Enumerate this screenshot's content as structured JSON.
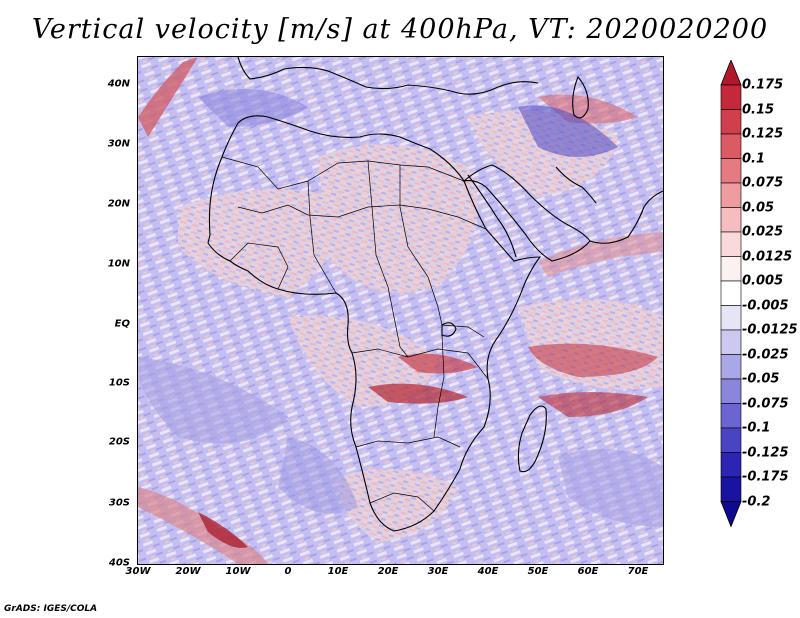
{
  "title": "Vertical velocity [m/s] at 400hPa, VT: 2020020200",
  "footer": "GrADS: IGES/COLA",
  "map": {
    "lat_labels": [
      "40N",
      "30N",
      "20N",
      "10N",
      "EQ",
      "10S",
      "20S",
      "30S",
      "40S"
    ],
    "lon_labels": [
      "30W",
      "20W",
      "10W",
      "0",
      "10E",
      "20E",
      "30E",
      "40E",
      "50E",
      "60E",
      "70E"
    ],
    "lat_range": [
      -40,
      45
    ],
    "lon_range": [
      -30,
      75
    ]
  },
  "colorbar": {
    "levels": [
      "0.175",
      "0.15",
      "0.125",
      "0.1",
      "0.075",
      "0.05",
      "0.025",
      "0.0125",
      "0.005",
      "-0.005",
      "-0.0125",
      "-0.025",
      "-0.05",
      "-0.075",
      "-0.1",
      "-0.125",
      "-0.175",
      "-0.2"
    ],
    "colors": [
      "#b2182b",
      "#c5283a",
      "#d13f4c",
      "#dc5a63",
      "#e57a80",
      "#ee9c9f",
      "#f5bdbf",
      "#fad9da",
      "#fdf0f0",
      "#ffffff",
      "#e6e5f8",
      "#cbc9f0",
      "#aaa7e6",
      "#8a86dc",
      "#6a65d1",
      "#4a44c4",
      "#2c25b4",
      "#1a12a0",
      "#0f0890"
    ]
  }
}
